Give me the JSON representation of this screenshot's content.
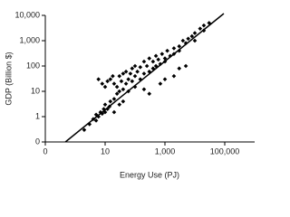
{
  "chart_data": {
    "type": "scatter",
    "x_label": "Energy Use (PJ)",
    "y_label": "GDP (Billion $)",
    "x_log": true,
    "y_log": true,
    "xlim": [
      0.1,
      1000000
    ],
    "ylim": [
      0.1,
      10000
    ],
    "xticks": [
      {
        "value": 0.1,
        "label": "0"
      },
      10,
      {
        "value": 1000,
        "label": "1,000"
      },
      {
        "value": 100000,
        "label": "100,000"
      }
    ],
    "yticks": [
      {
        "value": 0.1,
        "label": "0"
      },
      1,
      10,
      100,
      {
        "value": 1000,
        "label": "1,000"
      },
      {
        "value": 10000,
        "label": "10,000"
      }
    ],
    "color": "#000000",
    "x": [
      2,
      3,
      4,
      5,
      5,
      6,
      7,
      8,
      9,
      10,
      10,
      12,
      14,
      15,
      6,
      8,
      10,
      12,
      15,
      18,
      20,
      20,
      25,
      25,
      30,
      30,
      35,
      40,
      40,
      50,
      50,
      60,
      60,
      70,
      80,
      80,
      100,
      100,
      100,
      120,
      150,
      150,
      200,
      200,
      250,
      300,
      300,
      400,
      400,
      500,
      500,
      600,
      700,
      800,
      1000,
      1000,
      1200,
      1500,
      2000,
      2000,
      3000,
      3000,
      4000,
      5000,
      6000,
      8000,
      10000,
      10000,
      15000,
      20000,
      20000,
      30000,
      1000,
      2000,
      700,
      3000,
      5000,
      300,
      200,
      40,
      30,
      20
    ],
    "values": [
      0.3,
      0.5,
      0.8,
      1.2,
      0.7,
      1,
      1.5,
      1.3,
      2,
      1.5,
      3,
      2,
      2.5,
      4,
      30,
      20,
      15,
      25,
      30,
      40,
      5,
      20,
      8,
      15,
      10,
      40,
      25,
      12,
      50,
      20,
      60,
      30,
      10,
      50,
      25,
      80,
      40,
      15,
      100,
      60,
      30,
      90,
      50,
      150,
      100,
      60,
      200,
      150,
      80,
      100,
      250,
      180,
      120,
      300,
      200,
      150,
      400,
      250,
      500,
      300,
      600,
      400,
      1000,
      800,
      1200,
      1500,
      2000,
      1000,
      3000,
      2500,
      4000,
      5000,
      30,
      40,
      20,
      80,
      100,
      8,
      12,
      4,
      3,
      1.5
    ],
    "trendline": {
      "x": [
        0.47,
        93000
      ],
      "values": [
        0.1,
        11800
      ]
    }
  }
}
